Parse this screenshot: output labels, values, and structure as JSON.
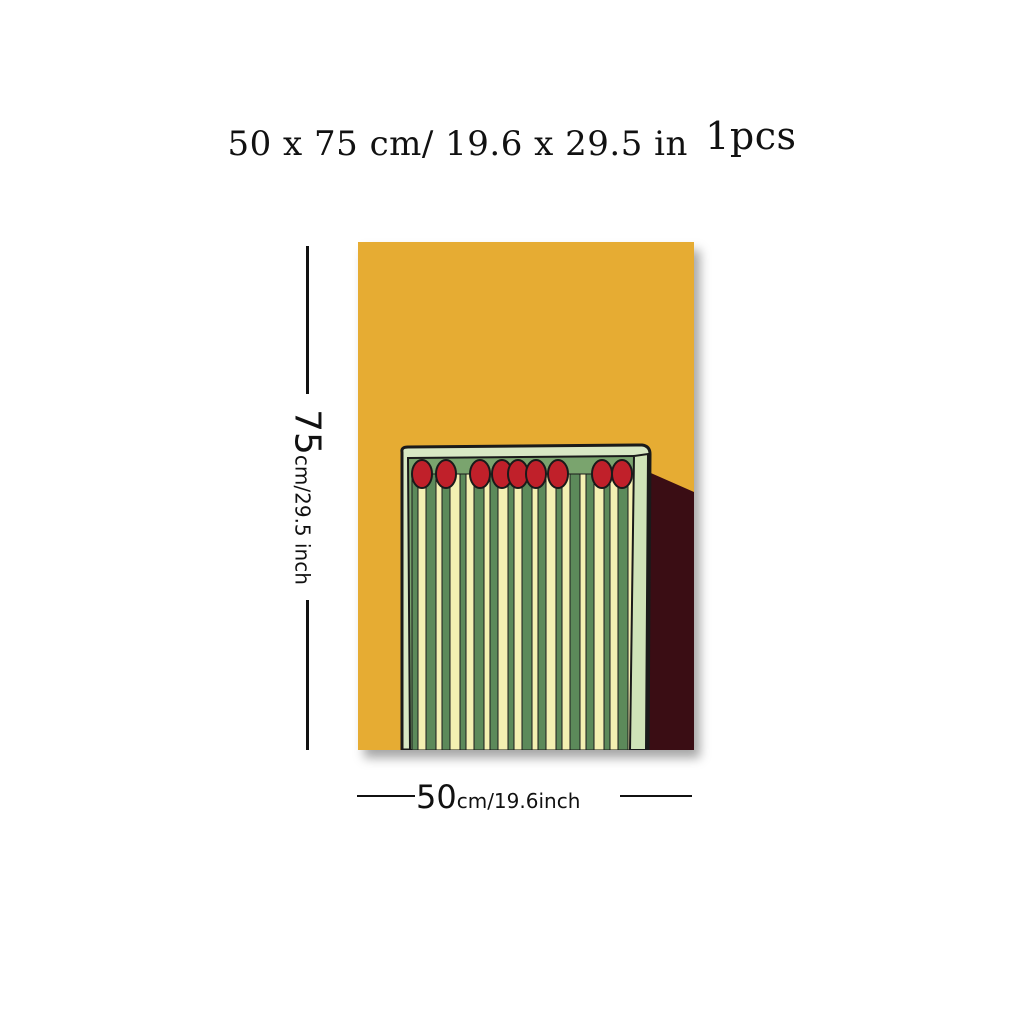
{
  "header": {
    "size_text": "50 x 75 cm/ 19.6 x 29.5 in",
    "quantity": "1pcs"
  },
  "height_label": {
    "number": "75",
    "unit": "cm/29.5 inch"
  },
  "width_label": {
    "number": "50",
    "unit": "cm/19.6inch"
  },
  "colors": {
    "background": "#e6ac33",
    "shadow": "#3a0d14",
    "matchbox_edge": "#d8e8c4",
    "match_stick_dark": "#5c8a5a",
    "match_stick_light": "#f3f0b2",
    "match_head": "#c0202a"
  }
}
